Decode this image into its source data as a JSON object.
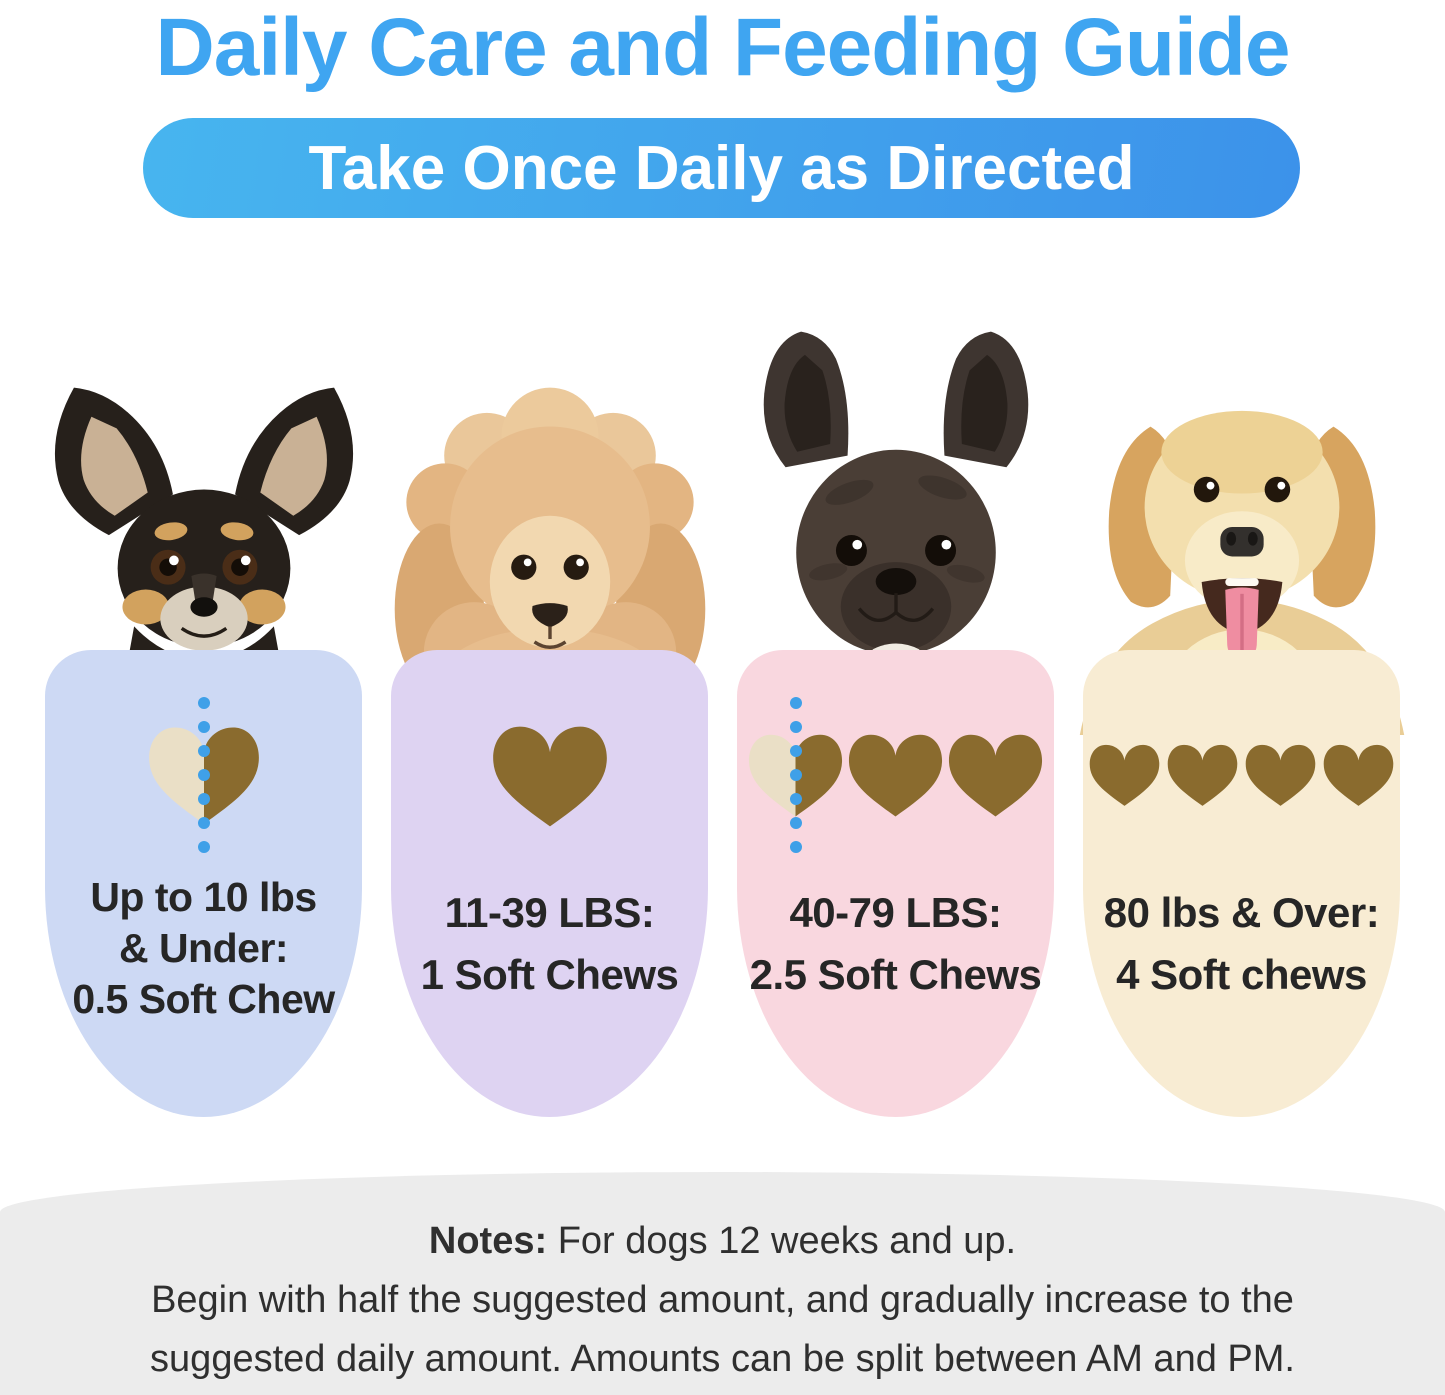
{
  "header": {
    "title": "Daily Care and Feeding Guide",
    "pill": "Take Once Daily as Directed"
  },
  "cards": [
    {
      "dog": "chihuahua",
      "lines": [
        "Up to 10 lbs",
        "& Under:",
        "0.5 Soft Chew"
      ],
      "chews": {
        "half": true,
        "full": 0
      },
      "bg": "#cdd9f4"
    },
    {
      "dog": "poodle",
      "lines": [
        "11-39 LBS:",
        "1 Soft Chews"
      ],
      "chews": {
        "half": false,
        "full": 1
      },
      "bg": "#ded3f2"
    },
    {
      "dog": "french-bulldog",
      "lines": [
        "40-79 LBS:",
        "2.5 Soft Chews"
      ],
      "chews": {
        "half": true,
        "full": 2
      },
      "bg": "#f9d7df"
    },
    {
      "dog": "golden-retriever",
      "lines": [
        "80 lbs & Over:",
        "4 Soft chews"
      ],
      "chews": {
        "half": false,
        "full": 4
      },
      "bg": "#f8ecd3"
    }
  ],
  "notes": {
    "label": "Notes:",
    "line1": " For dogs 12 weeks and up.",
    "line2": "Begin with half the suggested amount, and gradually increase to the",
    "line3": "suggested daily amount. Amounts can be split between AM and PM."
  },
  "colors": {
    "title_blue": "#3fa5f1",
    "pill_grad_start": "#47b5ef",
    "pill_grad_end": "#3c92ea",
    "dot_blue": "#3fa0e8",
    "chew_brown": "#8a6b2e",
    "chew_cream": "#eadfc6",
    "footer_bg": "#ececec",
    "text_dark": "#262626"
  }
}
